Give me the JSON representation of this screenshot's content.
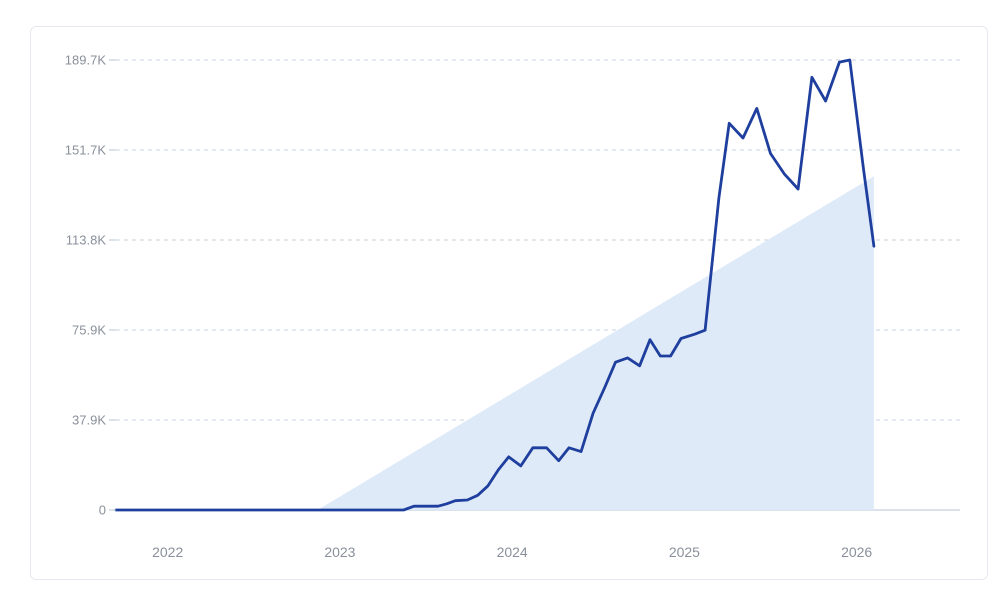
{
  "chart_data": {
    "type": "line",
    "title": "",
    "xlabel": "",
    "ylabel": "",
    "x_range": [
      2021.7,
      2026.6
    ],
    "ylim": [
      0,
      189700
    ],
    "y_ticks": [
      {
        "value": 0,
        "label": "0"
      },
      {
        "value": 37940,
        "label": "37.9K"
      },
      {
        "value": 75880,
        "label": "75.9K"
      },
      {
        "value": 113820,
        "label": "113.8K"
      },
      {
        "value": 151760,
        "label": "151.7K"
      },
      {
        "value": 189700,
        "label": "189.7K"
      }
    ],
    "x_ticks": [
      {
        "value": 2022,
        "label": "2022"
      },
      {
        "value": 2023,
        "label": "2023"
      },
      {
        "value": 2024,
        "label": "2024"
      },
      {
        "value": 2025,
        "label": "2025"
      },
      {
        "value": 2026,
        "label": "2026"
      }
    ],
    "grid": "horizontal dashed",
    "colors": {
      "line": "#1f3f9e",
      "area": "#dde9f8",
      "grid": "#c9d3df",
      "axis": "#b9c4d3"
    },
    "series": [
      {
        "kind": "line",
        "points": [
          [
            2021.7,
            0
          ],
          [
            2023.37,
            0
          ],
          [
            2023.43,
            1600
          ],
          [
            2023.57,
            1600
          ],
          [
            2023.62,
            2600
          ],
          [
            2023.67,
            3900
          ],
          [
            2023.74,
            4200
          ],
          [
            2023.8,
            6200
          ],
          [
            2023.86,
            10200
          ],
          [
            2023.92,
            17000
          ],
          [
            2023.98,
            22400
          ],
          [
            2024.05,
            18600
          ],
          [
            2024.12,
            26200
          ],
          [
            2024.2,
            26200
          ],
          [
            2024.27,
            20800
          ],
          [
            2024.33,
            26200
          ],
          [
            2024.4,
            24600
          ],
          [
            2024.47,
            40800
          ],
          [
            2024.54,
            52100
          ],
          [
            2024.6,
            62300
          ],
          [
            2024.67,
            64100
          ],
          [
            2024.74,
            60800
          ],
          [
            2024.8,
            71800
          ],
          [
            2024.86,
            64900
          ],
          [
            2024.92,
            64900
          ],
          [
            2024.98,
            72300
          ],
          [
            2025.06,
            74100
          ],
          [
            2025.12,
            75800
          ],
          [
            2025.2,
            131600
          ],
          [
            2025.26,
            163000
          ],
          [
            2025.34,
            156800
          ],
          [
            2025.42,
            169300
          ],
          [
            2025.5,
            150300
          ],
          [
            2025.58,
            141700
          ],
          [
            2025.66,
            135300
          ],
          [
            2025.74,
            182400
          ],
          [
            2025.82,
            172400
          ],
          [
            2025.9,
            188800
          ],
          [
            2025.96,
            189700
          ],
          [
            2026.04,
            143700
          ],
          [
            2026.1,
            111200
          ]
        ]
      },
      {
        "kind": "area",
        "points": [
          [
            2022.87,
            0
          ],
          [
            2026.1,
            140700
          ]
        ]
      }
    ]
  }
}
